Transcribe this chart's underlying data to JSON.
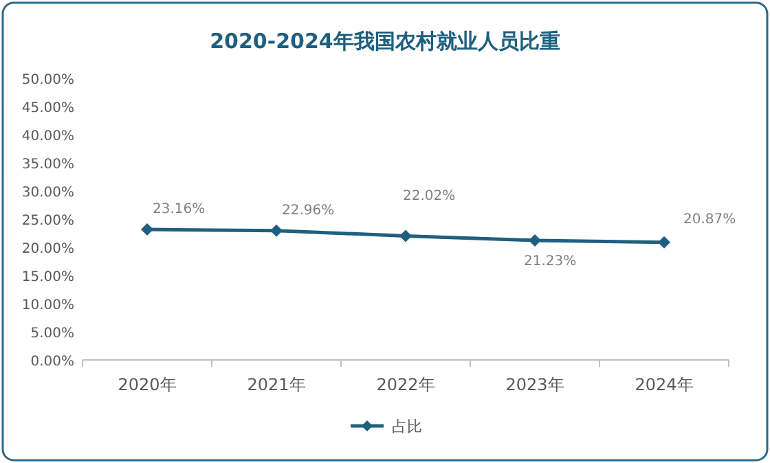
{
  "chart_data": {
    "type": "line",
    "title": "2020-2024年我国农村就业人员比重",
    "categories": [
      "2020年",
      "2021年",
      "2022年",
      "2023年",
      "2024年"
    ],
    "series": [
      {
        "name": "占比",
        "color": "#1f5f7f",
        "values": [
          23.16,
          22.96,
          22.02,
          21.23,
          20.87
        ],
        "value_labels": [
          "23.16%",
          "22.96%",
          "22.02%",
          "21.23%",
          "20.87%"
        ]
      }
    ],
    "ylim": [
      0,
      50
    ],
    "yticks": [
      {
        "value": 0,
        "label": "0.00%"
      },
      {
        "value": 5,
        "label": "5.00%"
      },
      {
        "value": 10,
        "label": "10.00%"
      },
      {
        "value": 15,
        "label": "15.00%"
      },
      {
        "value": 20,
        "label": "20.00%"
      },
      {
        "value": 25,
        "label": "25.00%"
      },
      {
        "value": 30,
        "label": "30.00%"
      },
      {
        "value": 35,
        "label": "35.00%"
      },
      {
        "value": 40,
        "label": "40.00%"
      },
      {
        "value": 45,
        "label": "45.00%"
      },
      {
        "value": 50,
        "label": "50.00%"
      }
    ],
    "marker": "diamond",
    "line_style": "solid",
    "legend": "bottom"
  }
}
